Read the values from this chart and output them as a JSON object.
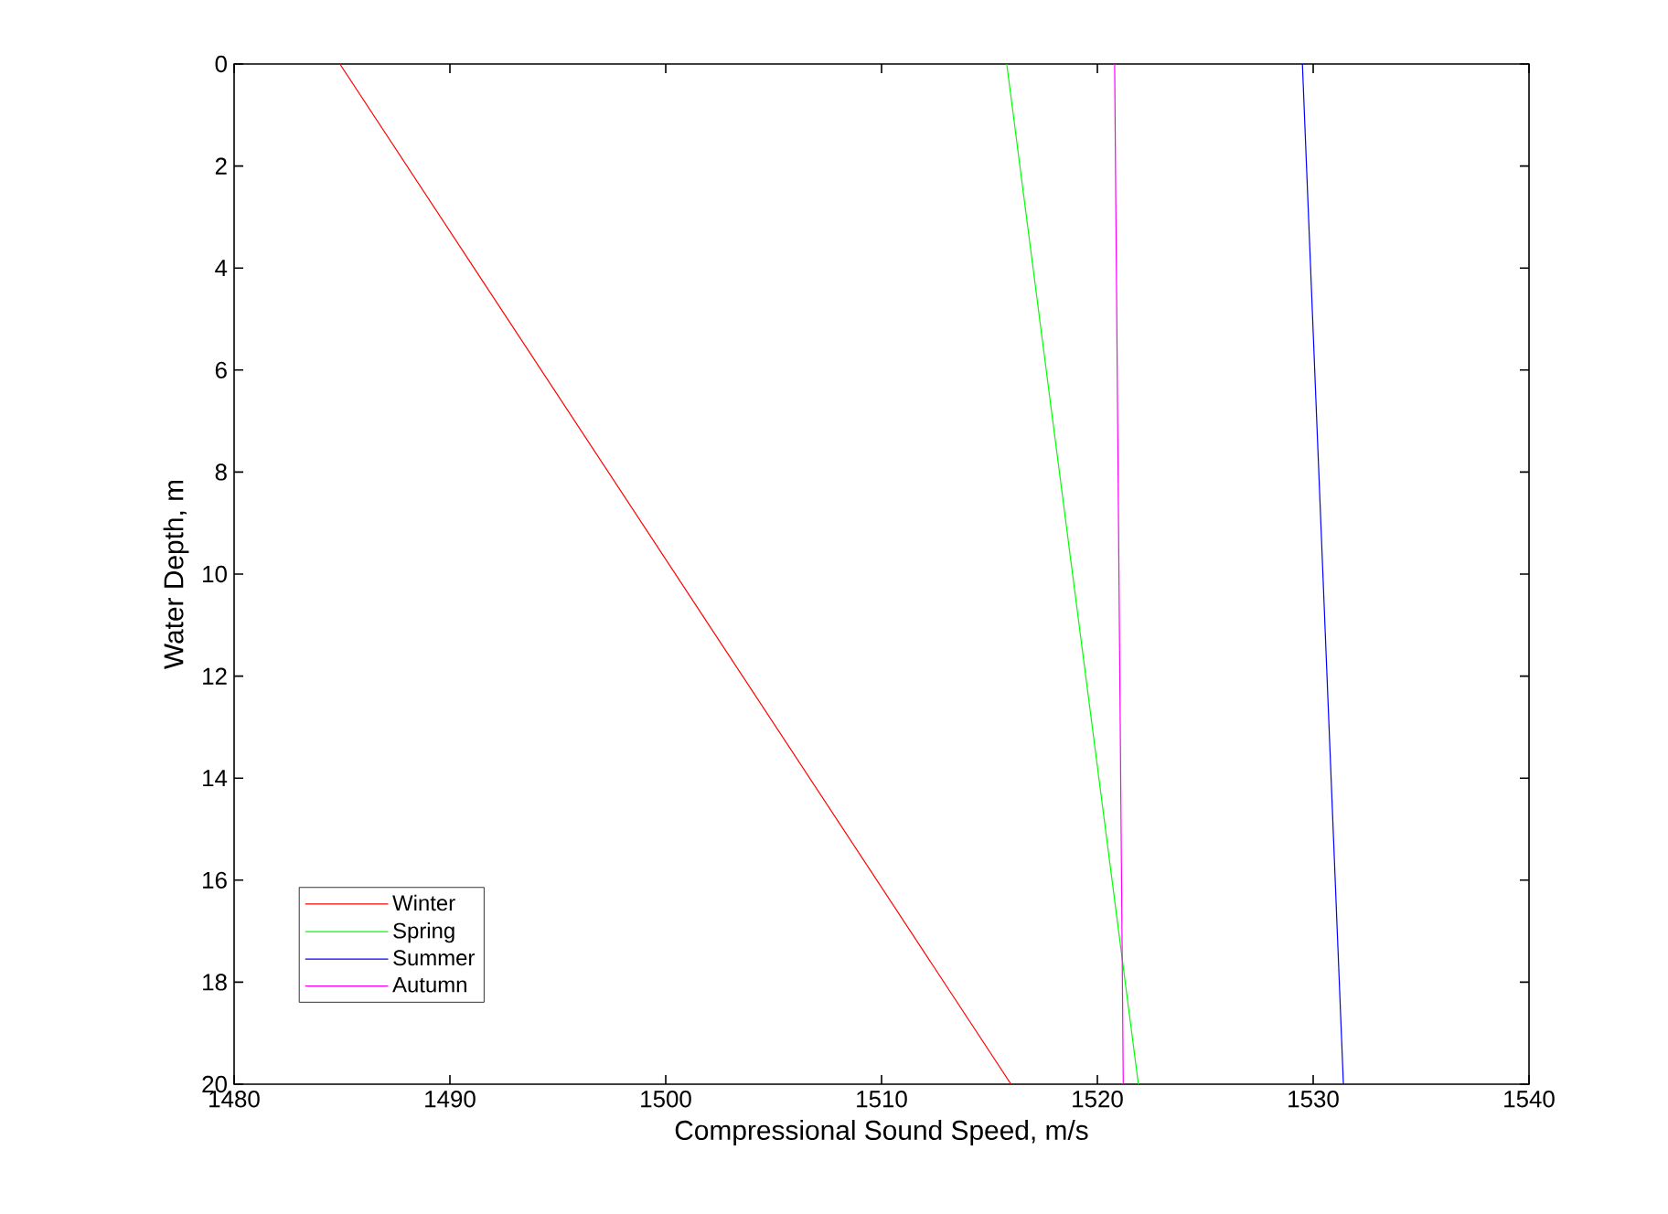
{
  "chart_data": {
    "type": "line",
    "xlabel": "Compressional Sound Speed, m/s",
    "ylabel": "Water Depth, m",
    "xlim": [
      1480,
      1540
    ],
    "xticks": [
      1480,
      1490,
      1500,
      1510,
      1520,
      1530,
      1540
    ],
    "ylim": [
      20,
      0
    ],
    "yticks": [
      0,
      2,
      4,
      6,
      8,
      10,
      12,
      14,
      16,
      18,
      20
    ],
    "legend": "bottom left",
    "grid": false,
    "marker": "none",
    "line_style": "solid",
    "series": [
      {
        "name": "Winter",
        "color": "#ff0000",
        "x": [
          1484.9,
          1516
        ],
        "values": [
          0,
          20
        ]
      },
      {
        "name": "Spring",
        "color": "#00ff00",
        "x": [
          1515.8,
          1521.9
        ],
        "values": [
          0,
          20
        ]
      },
      {
        "name": "Summer",
        "color": "#0000ff",
        "x": [
          1529.5,
          1531.4
        ],
        "values": [
          0,
          20
        ]
      },
      {
        "name": "Autumn",
        "color": "#ff00ff",
        "x": [
          1520.8,
          1521.2
        ],
        "values": [
          0,
          20
        ]
      }
    ]
  }
}
